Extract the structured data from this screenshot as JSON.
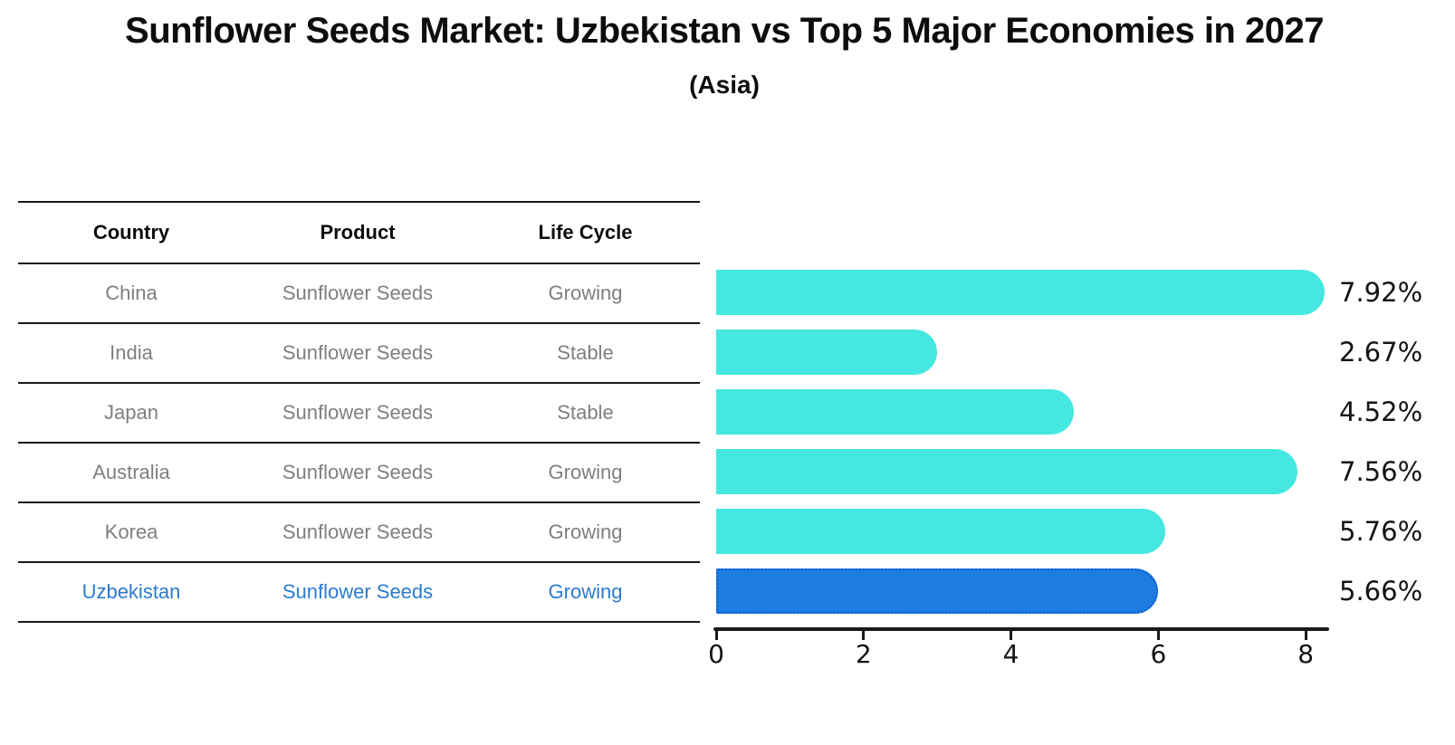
{
  "title": "Sunflower Seeds Market: Uzbekistan vs Top 5 Major Economies in 2027",
  "subtitle": "(Asia)",
  "table": {
    "headers": [
      "Country",
      "Product",
      "Life Cycle"
    ],
    "rows": [
      {
        "country": "China",
        "product": "Sunflower Seeds",
        "life_cycle": "Growing",
        "highlight": false
      },
      {
        "country": "India",
        "product": "Sunflower Seeds",
        "life_cycle": "Stable",
        "highlight": false
      },
      {
        "country": "Japan",
        "product": "Sunflower Seeds",
        "life_cycle": "Stable",
        "highlight": false
      },
      {
        "country": "Australia",
        "product": "Sunflower Seeds",
        "life_cycle": "Growing",
        "highlight": false
      },
      {
        "country": "Korea",
        "product": "Sunflower Seeds",
        "life_cycle": "Growing",
        "highlight": false
      },
      {
        "country": "Uzbekistan",
        "product": "Sunflower Seeds",
        "life_cycle": "Growing",
        "highlight": true
      }
    ]
  },
  "chart_data": {
    "type": "bar",
    "orientation": "horizontal",
    "title": "Sunflower Seeds Market: Uzbekistan vs Top 5 Major Economies in 2027",
    "subtitle": "(Asia)",
    "categories": [
      "China",
      "India",
      "Japan",
      "Australia",
      "Korea",
      "Uzbekistan"
    ],
    "values": [
      7.92,
      2.67,
      4.52,
      7.56,
      5.76,
      5.66
    ],
    "value_labels": [
      "7.92%",
      "2.67%",
      "4.52%",
      "7.56%",
      "5.76%",
      "5.66%"
    ],
    "xticks": [
      0,
      2,
      4,
      6,
      8
    ],
    "xlim": [
      0,
      8.4
    ],
    "grid": false,
    "legend": "none",
    "bar_color": "#45e8e0",
    "highlight_index": 5,
    "highlight_bar_color": "#1e7be0",
    "highlight_bar_border": "#0d5fd4",
    "value_label_color": "#141414"
  },
  "colors": {
    "row_text": "#7f7f7f",
    "highlight_text": "#2b7bce",
    "table_line": "#1a1a1a"
  }
}
